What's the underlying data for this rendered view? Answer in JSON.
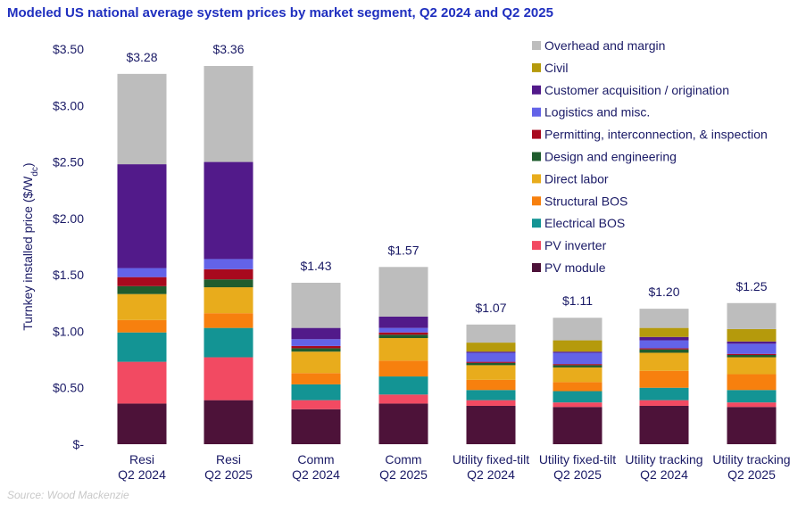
{
  "title": "Modeled US national average system prices by market segment, Q2 2024 and Q2 2025",
  "source": "Source: Wood Mackenzie",
  "chart_data": {
    "type": "bar",
    "stacked": true,
    "title": "Modeled US national average system prices by market segment, Q2 2024 and Q2 2025",
    "ylabel_main": "Turnkey installed price ($/W",
    "ylabel_sub": "dc",
    "ylabel_close": ")",
    "ylim": [
      0,
      3.5
    ],
    "yticks": [
      0,
      0.5,
      1.0,
      1.5,
      2.0,
      2.5,
      3.0,
      3.5
    ],
    "ytick_labels": [
      "$-",
      "$0.50",
      "$1.00",
      "$1.50",
      "$2.00",
      "$2.50",
      "$3.00",
      "$3.50"
    ],
    "legend_position": "top-right",
    "categories": [
      [
        "Resi",
        "Q2 2024"
      ],
      [
        "Resi",
        "Q2 2025"
      ],
      [
        "Comm",
        "Q2 2024"
      ],
      [
        "Comm",
        "Q2 2025"
      ],
      [
        "Utility fixed-tilt",
        "Q2 2024"
      ],
      [
        "Utility fixed-tilt",
        "Q2 2025"
      ],
      [
        "Utility tracking",
        "Q2 2024"
      ],
      [
        "Utility tracking",
        "Q2 2025"
      ]
    ],
    "totals": [
      "$3.28",
      "$3.36",
      "$1.43",
      "$1.57",
      "$1.07",
      "$1.11",
      "$1.20",
      "$1.25"
    ],
    "series": [
      {
        "name": "PV module",
        "color": "#4d1239",
        "values": [
          0.36,
          0.39,
          0.31,
          0.36,
          0.34,
          0.33,
          0.34,
          0.33
        ]
      },
      {
        "name": "PV inverter",
        "color": "#f24a62",
        "values": [
          0.37,
          0.38,
          0.08,
          0.08,
          0.05,
          0.04,
          0.05,
          0.04
        ]
      },
      {
        "name": "Electrical BOS",
        "color": "#139494",
        "values": [
          0.26,
          0.26,
          0.14,
          0.16,
          0.09,
          0.1,
          0.11,
          0.11
        ]
      },
      {
        "name": "Structural BOS",
        "color": "#f7800e",
        "values": [
          0.11,
          0.13,
          0.1,
          0.14,
          0.09,
          0.08,
          0.15,
          0.14
        ]
      },
      {
        "name": "Direct labor",
        "color": "#e8ac1c",
        "values": [
          0.23,
          0.23,
          0.19,
          0.2,
          0.13,
          0.13,
          0.16,
          0.15
        ]
      },
      {
        "name": "Design and engineering",
        "color": "#1f5c2e",
        "values": [
          0.07,
          0.07,
          0.03,
          0.03,
          0.02,
          0.02,
          0.03,
          0.02
        ]
      },
      {
        "name": "Permitting, interconnection, & inspection",
        "color": "#a8091e",
        "values": [
          0.08,
          0.09,
          0.02,
          0.02,
          0.01,
          0.01,
          0.01,
          0.01
        ]
      },
      {
        "name": "Logistics and misc.",
        "color": "#6363e8",
        "values": [
          0.08,
          0.09,
          0.06,
          0.04,
          0.08,
          0.1,
          0.07,
          0.09
        ]
      },
      {
        "name": "Customer acquisition / origination",
        "color": "#521a8a",
        "values": [
          0.92,
          0.86,
          0.1,
          0.1,
          0.01,
          0.01,
          0.03,
          0.02
        ]
      },
      {
        "name": "Civil",
        "color": "#b59a0c",
        "values": [
          0.0,
          0.0,
          0.0,
          0.0,
          0.08,
          0.1,
          0.08,
          0.11
        ]
      },
      {
        "name": "Overhead and margin",
        "color": "#bdbdbd",
        "values": [
          0.8,
          0.85,
          0.4,
          0.44,
          0.16,
          0.2,
          0.17,
          0.23
        ]
      }
    ]
  }
}
